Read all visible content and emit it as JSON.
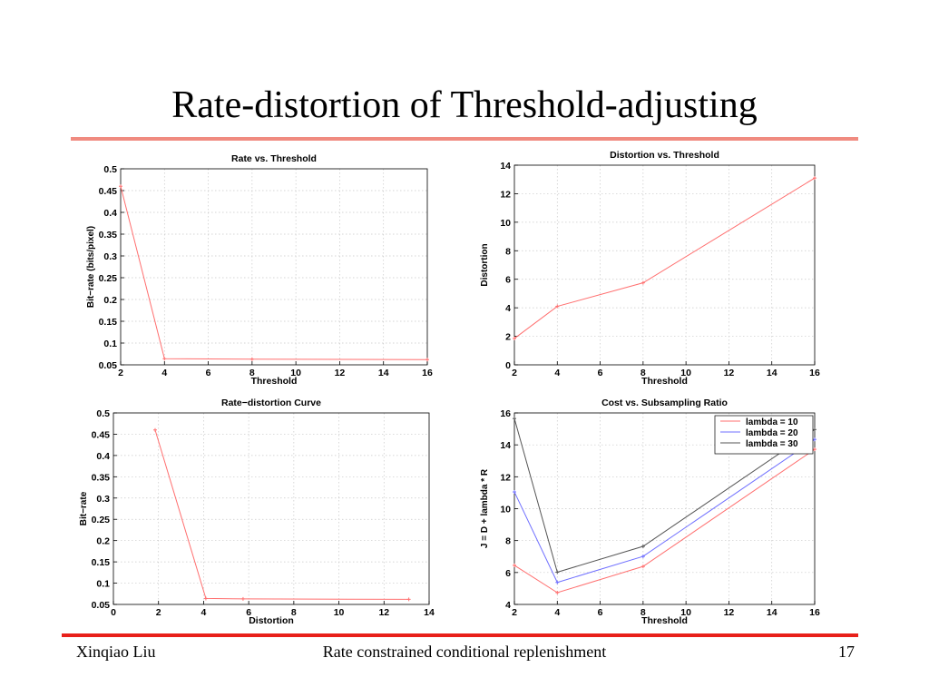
{
  "slide": {
    "title": "Rate-distortion of Threshold-adjusting",
    "footer_left": "Xinqiao Liu",
    "footer_center": "Rate constrained conditional replenishment",
    "footer_right": "17"
  },
  "colors": {
    "title_rule": "#f08b80",
    "footer_rule": "#e8201a",
    "series_red": "#ff6f6f",
    "series_blue": "#6f6fff",
    "series_gray": "#555555",
    "grid": "#c8c8c8"
  },
  "chart_data": [
    {
      "type": "line",
      "title": "Rate vs. Threshold",
      "xlabel": "Threshold",
      "ylabel": "Bit−rate (bits/pixel)",
      "xlim": [
        2,
        16
      ],
      "ylim": [
        0.05,
        0.5
      ],
      "xticks": [
        2,
        4,
        6,
        8,
        10,
        12,
        14,
        16
      ],
      "yticks": [
        0.05,
        0.1,
        0.15,
        0.2,
        0.25,
        0.3,
        0.35,
        0.4,
        0.45,
        0.5
      ],
      "ytick_labels": [
        "0.05",
        "0.1",
        "0.15",
        "0.2",
        "0.25",
        "0.3",
        "0.35",
        "0.4",
        "0.45",
        "0.5"
      ],
      "grid": true,
      "series": [
        {
          "color": "#ff6f6f",
          "x": [
            2,
            4,
            8,
            16
          ],
          "y": [
            0.46,
            0.064,
            0.063,
            0.062
          ]
        }
      ]
    },
    {
      "type": "line",
      "title": "Distortion vs. Threshold",
      "xlabel": "Threshold",
      "ylabel": "Distortion",
      "xlim": [
        2,
        16
      ],
      "ylim": [
        0,
        14
      ],
      "xticks": [
        2,
        4,
        6,
        8,
        10,
        12,
        14,
        16
      ],
      "yticks": [
        0,
        2,
        4,
        6,
        8,
        10,
        12,
        14
      ],
      "ytick_labels": [
        "0",
        "2",
        "4",
        "6",
        "8",
        "10",
        "12",
        "14"
      ],
      "grid": true,
      "series": [
        {
          "color": "#ff6f6f",
          "x": [
            2,
            4,
            8,
            16
          ],
          "y": [
            1.85,
            4.1,
            5.75,
            13.1
          ]
        }
      ]
    },
    {
      "type": "line",
      "title": "Rate−distortion Curve",
      "xlabel": "Distortion",
      "ylabel": "Bit−rate",
      "xlim": [
        0,
        14
      ],
      "ylim": [
        0.05,
        0.5
      ],
      "xticks": [
        0,
        2,
        4,
        6,
        8,
        10,
        12,
        14
      ],
      "yticks": [
        0.05,
        0.1,
        0.15,
        0.2,
        0.25,
        0.3,
        0.35,
        0.4,
        0.45,
        0.5
      ],
      "ytick_labels": [
        "0.05",
        "0.1",
        "0.15",
        "0.2",
        "0.25",
        "0.3",
        "0.35",
        "0.4",
        "0.45",
        "0.5"
      ],
      "grid": true,
      "series": [
        {
          "color": "#ff6f6f",
          "x": [
            1.85,
            4.1,
            5.75,
            13.1
          ],
          "y": [
            0.46,
            0.064,
            0.063,
            0.062
          ]
        }
      ]
    },
    {
      "type": "line",
      "title": "Cost vs. Subsampling Ratio",
      "xlabel": "Threshold",
      "ylabel": "J = D + lambda * R",
      "xlim": [
        2,
        16
      ],
      "ylim": [
        4,
        16
      ],
      "xticks": [
        2,
        4,
        6,
        8,
        10,
        12,
        14,
        16
      ],
      "yticks": [
        4,
        6,
        8,
        10,
        12,
        14,
        16
      ],
      "ytick_labels": [
        "4",
        "6",
        "8",
        "10",
        "12",
        "14",
        "16"
      ],
      "grid": true,
      "legend": "top-right",
      "series": [
        {
          "name": "lambda = 10",
          "color": "#ff6f6f",
          "x": [
            2,
            4,
            8,
            16
          ],
          "y": [
            6.45,
            4.74,
            6.38,
            13.72
          ]
        },
        {
          "name": "lambda = 20",
          "color": "#6f6fff",
          "x": [
            2,
            4,
            8,
            16
          ],
          "y": [
            11.05,
            5.38,
            7.01,
            14.34
          ]
        },
        {
          "name": "lambda = 30",
          "color": "#555555",
          "x": [
            2,
            4,
            8,
            16
          ],
          "y": [
            15.65,
            6.02,
            7.64,
            14.96
          ]
        }
      ]
    }
  ]
}
